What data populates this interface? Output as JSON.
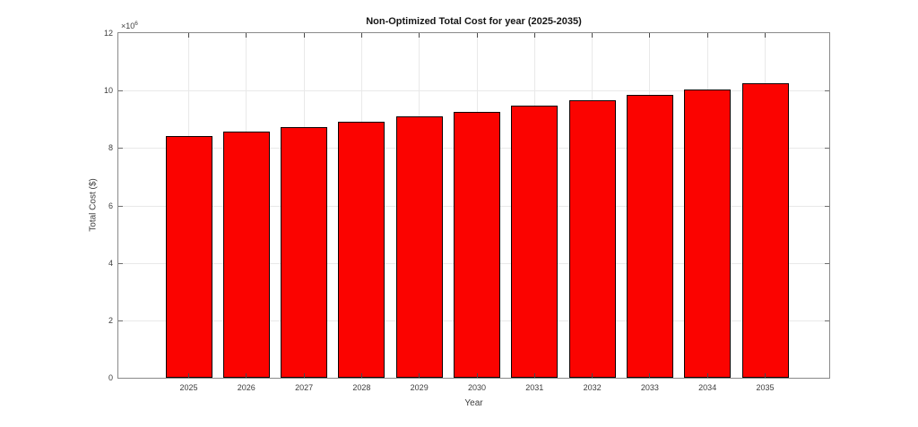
{
  "chart": {
    "title": "Non-Optimized Total Cost for year (2025-2035)",
    "xlabel": "Year",
    "ylabel": "Total Cost ($)",
    "y_exponent": {
      "base": "×10",
      "exp": "6"
    }
  },
  "chart_data": {
    "type": "bar",
    "title": "Non-Optimized Total Cost for year (2025-2035)",
    "xlabel": "Year",
    "ylabel": "Total Cost ($)",
    "categories": [
      "2025",
      "2026",
      "2027",
      "2028",
      "2029",
      "2030",
      "2031",
      "2032",
      "2033",
      "2034",
      "2035"
    ],
    "values": [
      8400000,
      8570000,
      8740000,
      8910000,
      9090000,
      9270000,
      9460000,
      9650000,
      9840000,
      10040000,
      10240000
    ],
    "ylim": [
      0,
      12000000
    ],
    "yticks": [
      0,
      2,
      4,
      6,
      8,
      10,
      12
    ],
    "ytick_labels": [
      "0",
      "2",
      "4",
      "6",
      "8",
      "10",
      "12"
    ],
    "y_scale_label": "×10⁶",
    "grid": true,
    "legend": null,
    "bar_color": "#fb0300",
    "bar_edge_color": "#0d0000",
    "background_color": "#ffffff",
    "grid_color": "#e9e9e9",
    "axis_color": "#898989"
  }
}
